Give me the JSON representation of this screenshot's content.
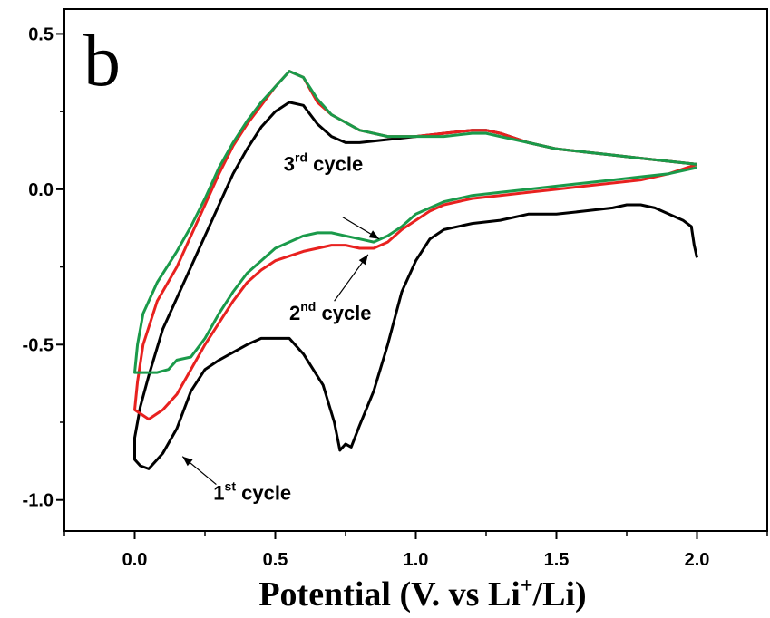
{
  "chart_data": {
    "type": "line",
    "panel_label": "b",
    "title": "",
    "xlabel": "Potential (V. vs Li",
    "xlabel_sup": "+",
    "xlabel_tail": "/Li)",
    "ylabel": "",
    "xlim": [
      -0.25,
      2.25
    ],
    "ylim": [
      -1.1,
      0.58
    ],
    "x_ticks": [
      0.0,
      0.5,
      1.0,
      1.5,
      2.0
    ],
    "x_tick_labels": [
      "0.0",
      "0.5",
      "1.0",
      "1.5",
      "2.0"
    ],
    "y_ticks": [
      -1.0,
      -0.5,
      0.0,
      0.5
    ],
    "y_tick_labels": [
      "-1.0",
      "-0.5",
      "0.0",
      "0.5"
    ],
    "grid": false,
    "legend": "none",
    "series": [
      {
        "color": "#000000",
        "points": [
          [
            2.0,
            -0.22
          ],
          [
            1.99,
            -0.18
          ],
          [
            1.98,
            -0.12
          ],
          [
            1.95,
            -0.1
          ],
          [
            1.9,
            -0.08
          ],
          [
            1.85,
            -0.06
          ],
          [
            1.8,
            -0.05
          ],
          [
            1.75,
            -0.05
          ],
          [
            1.7,
            -0.06
          ],
          [
            1.6,
            -0.07
          ],
          [
            1.5,
            -0.08
          ],
          [
            1.4,
            -0.08
          ],
          [
            1.3,
            -0.1
          ],
          [
            1.2,
            -0.11
          ],
          [
            1.1,
            -0.13
          ],
          [
            1.05,
            -0.16
          ],
          [
            1.0,
            -0.23
          ],
          [
            0.95,
            -0.33
          ],
          [
            0.9,
            -0.5
          ],
          [
            0.85,
            -0.65
          ],
          [
            0.8,
            -0.76
          ],
          [
            0.77,
            -0.83
          ],
          [
            0.75,
            -0.82
          ],
          [
            0.73,
            -0.84
          ],
          [
            0.71,
            -0.75
          ],
          [
            0.67,
            -0.63
          ],
          [
            0.6,
            -0.53
          ],
          [
            0.55,
            -0.48
          ],
          [
            0.5,
            -0.48
          ],
          [
            0.45,
            -0.48
          ],
          [
            0.4,
            -0.5
          ],
          [
            0.3,
            -0.55
          ],
          [
            0.25,
            -0.58
          ],
          [
            0.2,
            -0.65
          ],
          [
            0.15,
            -0.77
          ],
          [
            0.1,
            -0.85
          ],
          [
            0.05,
            -0.9
          ],
          [
            0.02,
            -0.89
          ],
          [
            0.0,
            -0.87
          ],
          [
            0.0,
            -0.8
          ],
          [
            0.02,
            -0.7
          ],
          [
            0.05,
            -0.6
          ],
          [
            0.1,
            -0.45
          ],
          [
            0.15,
            -0.35
          ],
          [
            0.2,
            -0.25
          ],
          [
            0.25,
            -0.15
          ],
          [
            0.3,
            -0.05
          ],
          [
            0.35,
            0.05
          ],
          [
            0.4,
            0.13
          ],
          [
            0.45,
            0.2
          ],
          [
            0.5,
            0.25
          ],
          [
            0.55,
            0.28
          ],
          [
            0.6,
            0.27
          ],
          [
            0.65,
            0.21
          ],
          [
            0.7,
            0.17
          ],
          [
            0.75,
            0.15
          ],
          [
            0.8,
            0.15
          ],
          [
            0.9,
            0.16
          ],
          [
            1.0,
            0.17
          ],
          [
            1.1,
            0.18
          ],
          [
            1.2,
            0.19
          ],
          [
            1.25,
            0.19
          ],
          [
            1.3,
            0.18
          ],
          [
            1.4,
            0.15
          ],
          [
            1.5,
            0.13
          ],
          [
            1.6,
            0.12
          ],
          [
            1.7,
            0.11
          ],
          [
            1.8,
            0.1
          ],
          [
            1.9,
            0.09
          ],
          [
            2.0,
            0.08
          ]
        ]
      },
      {
        "color": "#e8211f",
        "points": [
          [
            2.0,
            0.08
          ],
          [
            1.9,
            0.05
          ],
          [
            1.8,
            0.03
          ],
          [
            1.7,
            0.02
          ],
          [
            1.6,
            0.01
          ],
          [
            1.5,
            0.0
          ],
          [
            1.4,
            -0.01
          ],
          [
            1.3,
            -0.02
          ],
          [
            1.2,
            -0.03
          ],
          [
            1.1,
            -0.05
          ],
          [
            1.05,
            -0.07
          ],
          [
            1.0,
            -0.1
          ],
          [
            0.95,
            -0.13
          ],
          [
            0.9,
            -0.17
          ],
          [
            0.85,
            -0.19
          ],
          [
            0.8,
            -0.19
          ],
          [
            0.75,
            -0.18
          ],
          [
            0.7,
            -0.18
          ],
          [
            0.65,
            -0.19
          ],
          [
            0.6,
            -0.2
          ],
          [
            0.5,
            -0.23
          ],
          [
            0.45,
            -0.26
          ],
          [
            0.4,
            -0.3
          ],
          [
            0.35,
            -0.36
          ],
          [
            0.3,
            -0.43
          ],
          [
            0.25,
            -0.5
          ],
          [
            0.2,
            -0.58
          ],
          [
            0.15,
            -0.66
          ],
          [
            0.1,
            -0.71
          ],
          [
            0.05,
            -0.74
          ],
          [
            0.0,
            -0.71
          ],
          [
            0.01,
            -0.62
          ],
          [
            0.03,
            -0.5
          ],
          [
            0.08,
            -0.36
          ],
          [
            0.15,
            -0.25
          ],
          [
            0.2,
            -0.15
          ],
          [
            0.25,
            -0.05
          ],
          [
            0.3,
            0.05
          ],
          [
            0.35,
            0.14
          ],
          [
            0.4,
            0.21
          ],
          [
            0.45,
            0.27
          ],
          [
            0.5,
            0.33
          ],
          [
            0.55,
            0.38
          ],
          [
            0.6,
            0.36
          ],
          [
            0.65,
            0.28
          ],
          [
            0.7,
            0.24
          ],
          [
            0.8,
            0.19
          ],
          [
            0.9,
            0.17
          ],
          [
            1.0,
            0.17
          ],
          [
            1.1,
            0.18
          ],
          [
            1.2,
            0.19
          ],
          [
            1.25,
            0.19
          ],
          [
            1.3,
            0.18
          ],
          [
            1.4,
            0.15
          ],
          [
            1.5,
            0.13
          ],
          [
            1.6,
            0.12
          ],
          [
            1.7,
            0.11
          ],
          [
            1.8,
            0.1
          ],
          [
            1.9,
            0.09
          ],
          [
            2.0,
            0.08
          ]
        ]
      },
      {
        "color": "#1a9a4a",
        "points": [
          [
            2.0,
            0.07
          ],
          [
            1.9,
            0.05
          ],
          [
            1.8,
            0.04
          ],
          [
            1.7,
            0.03
          ],
          [
            1.6,
            0.02
          ],
          [
            1.5,
            0.01
          ],
          [
            1.4,
            0.0
          ],
          [
            1.3,
            -0.01
          ],
          [
            1.2,
            -0.02
          ],
          [
            1.1,
            -0.04
          ],
          [
            1.05,
            -0.06
          ],
          [
            1.0,
            -0.08
          ],
          [
            0.95,
            -0.12
          ],
          [
            0.9,
            -0.15
          ],
          [
            0.85,
            -0.17
          ],
          [
            0.8,
            -0.16
          ],
          [
            0.75,
            -0.15
          ],
          [
            0.7,
            -0.14
          ],
          [
            0.65,
            -0.14
          ],
          [
            0.6,
            -0.15
          ],
          [
            0.5,
            -0.19
          ],
          [
            0.45,
            -0.23
          ],
          [
            0.4,
            -0.27
          ],
          [
            0.35,
            -0.33
          ],
          [
            0.3,
            -0.4
          ],
          [
            0.25,
            -0.48
          ],
          [
            0.2,
            -0.54
          ],
          [
            0.15,
            -0.55
          ],
          [
            0.12,
            -0.58
          ],
          [
            0.08,
            -0.59
          ],
          [
            0.0,
            -0.59
          ],
          [
            0.01,
            -0.5
          ],
          [
            0.03,
            -0.4
          ],
          [
            0.08,
            -0.3
          ],
          [
            0.15,
            -0.2
          ],
          [
            0.2,
            -0.12
          ],
          [
            0.25,
            -0.03
          ],
          [
            0.3,
            0.07
          ],
          [
            0.35,
            0.15
          ],
          [
            0.4,
            0.22
          ],
          [
            0.45,
            0.28
          ],
          [
            0.5,
            0.33
          ],
          [
            0.55,
            0.38
          ],
          [
            0.6,
            0.36
          ],
          [
            0.65,
            0.29
          ],
          [
            0.7,
            0.24
          ],
          [
            0.8,
            0.19
          ],
          [
            0.9,
            0.17
          ],
          [
            1.0,
            0.17
          ],
          [
            1.1,
            0.17
          ],
          [
            1.2,
            0.18
          ],
          [
            1.25,
            0.18
          ],
          [
            1.3,
            0.17
          ],
          [
            1.4,
            0.15
          ],
          [
            1.5,
            0.13
          ],
          [
            1.6,
            0.12
          ],
          [
            1.7,
            0.11
          ],
          [
            1.8,
            0.1
          ],
          [
            1.9,
            0.09
          ],
          [
            2.0,
            0.08
          ]
        ]
      }
    ],
    "annotations": [
      {
        "base": "3",
        "sup": "rd",
        "tail": " cycle",
        "text_at": [
          0.53,
          0.06
        ],
        "arrow_from": [
          0.74,
          -0.09
        ],
        "arrow_to": [
          0.87,
          -0.16
        ]
      },
      {
        "base": "2",
        "sup": "nd",
        "tail": " cycle",
        "text_at": [
          0.55,
          -0.42
        ],
        "arrow_from": [
          0.71,
          -0.36
        ],
        "arrow_to": [
          0.83,
          -0.21
        ]
      },
      {
        "base": "1",
        "sup": "st",
        "tail": " cycle",
        "text_at": [
          0.28,
          -1.0
        ],
        "arrow_from": [
          0.29,
          -0.95
        ],
        "arrow_to": [
          0.17,
          -0.86
        ]
      }
    ]
  }
}
